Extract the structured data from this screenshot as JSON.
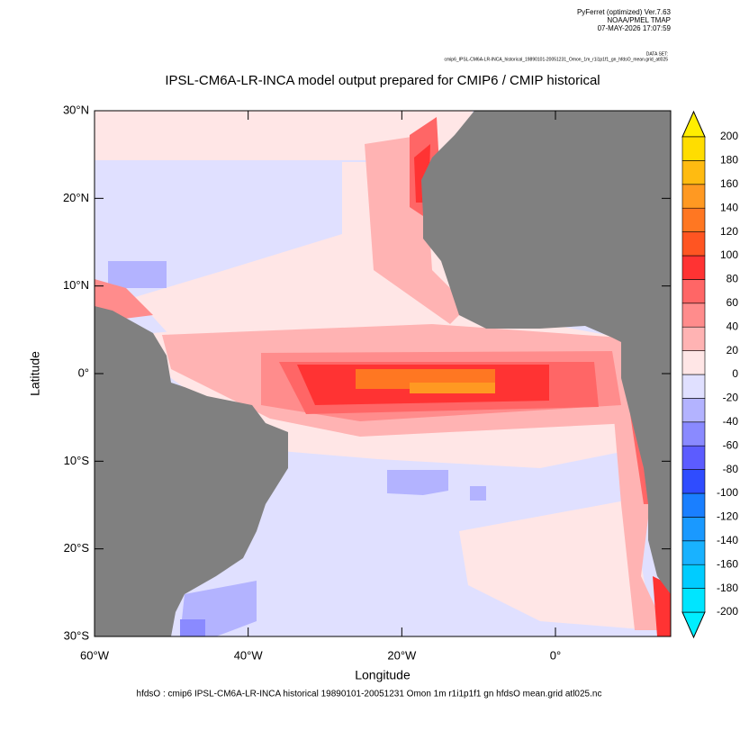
{
  "chart_data": {
    "type": "map",
    "header": [
      "PyFerret (optimized) Ver.7.63",
      "NOAA/PMEL TMAP",
      "07-MAY-2026 17:07:59"
    ],
    "dataset_label": "DATA SET:",
    "dataset": "cmip6_IPSL-CM6A-LR-INCA_historical_19890101-20051231_Omon_1m_r1i1p1f1_gn_hfdsO_mean.grid_atl025",
    "title": "IPSL-CM6A-LR-INCA model output prepared for CMIP6 / CMIP historical",
    "x_label": "Longitude",
    "y_label": "Latitude",
    "footer": "hfdsO : cmip6 IPSL-CM6A-LR-INCA historical 19890101-20051231 Omon 1m r1i1p1f1 gn hfdsO mean.grid atl025.nc",
    "xlim": [
      -60,
      15
    ],
    "ylim": [
      -30,
      30
    ],
    "xticks": [
      {
        "value": -60,
        "label": "60°W"
      },
      {
        "value": -40,
        "label": "40°W"
      },
      {
        "value": -20,
        "label": "20°W"
      },
      {
        "value": 0,
        "label": "0°"
      }
    ],
    "yticks": [
      {
        "value": -30,
        "label": "30°S"
      },
      {
        "value": -20,
        "label": "20°S"
      },
      {
        "value": -10,
        "label": "10°S"
      },
      {
        "value": 0,
        "label": "0°"
      },
      {
        "value": 10,
        "label": "10°N"
      },
      {
        "value": 20,
        "label": "20°N"
      },
      {
        "value": 30,
        "label": "30°N"
      }
    ],
    "levels": [
      -200,
      -180,
      -160,
      -140,
      -120,
      -100,
      -80,
      -60,
      -40,
      -20,
      0,
      20,
      40,
      60,
      80,
      100,
      120,
      140,
      160,
      180,
      200
    ],
    "colors": [
      "#00eeff",
      "#00e5ff",
      "#00ccff",
      "#19b2ff",
      "#1a99ff",
      "#1a7fff",
      "#2f4cff",
      "#5c5cff",
      "#8a8aff",
      "#b3b3ff",
      "#e0e0ff",
      "#ffe6e6",
      "#ffb3b3",
      "#ff8c8c",
      "#ff6666",
      "#ff3333",
      "#ff5522",
      "#ff7722",
      "#ff9922",
      "#ffbb11",
      "#ffdd00",
      "#ffee00"
    ]
  }
}
